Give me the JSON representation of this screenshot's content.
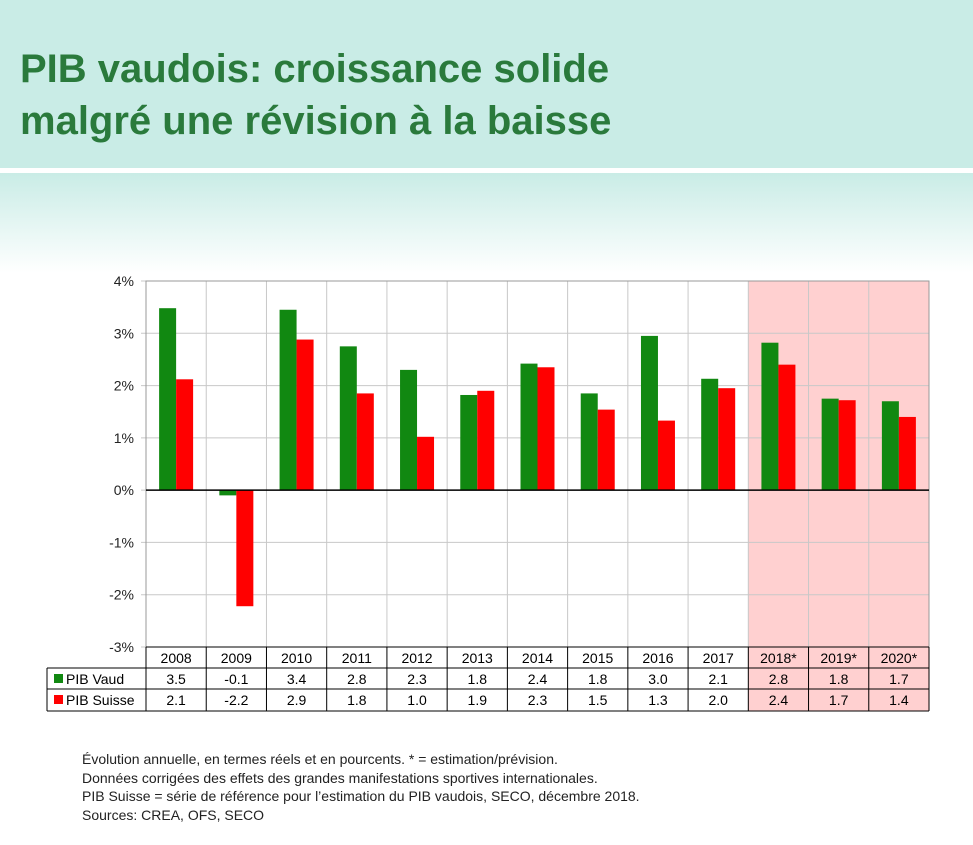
{
  "title_lines": [
    "PIB vaudois: croissance solide",
    "malgré une révision à la baisse"
  ],
  "colors": {
    "vaud": "#118811",
    "suisse": "#ff0000",
    "forecast_shade": "#ffd0d0",
    "header_bg": "#c9ece6",
    "title": "#2a7a3c"
  },
  "chart_data": {
    "type": "bar",
    "categories": [
      "2008",
      "2009",
      "2010",
      "2011",
      "2012",
      "2013",
      "2014",
      "2015",
      "2016",
      "2017",
      "2018*",
      "2019*",
      "2020*"
    ],
    "forecast_categories": [
      "2018*",
      "2019*",
      "2020*"
    ],
    "series": [
      {
        "name": "PIB Vaud",
        "values": [
          3.5,
          -0.1,
          3.4,
          2.8,
          2.3,
          1.8,
          2.4,
          1.8,
          3.0,
          2.1,
          2.8,
          1.8,
          1.7
        ]
      },
      {
        "name": "PIB Suisse",
        "values": [
          2.1,
          -2.2,
          2.9,
          1.8,
          1.0,
          1.9,
          2.3,
          1.5,
          1.3,
          2.0,
          2.4,
          1.7,
          1.4
        ]
      }
    ],
    "bar_values": [
      [
        3.48,
        -0.1,
        3.45,
        2.75,
        2.3,
        1.82,
        2.42,
        1.85,
        2.95,
        2.13,
        2.82,
        1.75,
        1.7
      ],
      [
        2.12,
        -2.22,
        2.88,
        1.85,
        1.02,
        1.9,
        2.35,
        1.54,
        1.33,
        1.95,
        2.4,
        1.72,
        1.4
      ]
    ],
    "y_ticks": [
      "4%",
      "3%",
      "2%",
      "1%",
      "0%",
      "-1%",
      "-2%",
      "-3%"
    ],
    "ylim": [
      -3,
      4
    ],
    "table_values": [
      [
        "3.5",
        "-0.1",
        "3.4",
        "2.8",
        "2.3",
        "1.8",
        "2.4",
        "1.8",
        "3.0",
        "2.1",
        "2.8",
        "1.8",
        "1.7"
      ],
      [
        "2.1",
        "-2.2",
        "2.9",
        "1.8",
        "1.0",
        "1.9",
        "2.3",
        "1.5",
        "1.3",
        "2.0",
        "2.4",
        "1.7",
        "1.4"
      ]
    ],
    "grid": true,
    "legend": "data-table"
  },
  "notes": [
    "Évolution annuelle, en termes réels et en pourcents. * = estimation/prévision.",
    "Données corrigées des effets des grandes manifestations sportives internationales.",
    "PIB Suisse = série de référence pour l’estimation du PIB vaudois, SECO, décembre 2018.",
    "Sources: CREA, OFS, SECO"
  ]
}
